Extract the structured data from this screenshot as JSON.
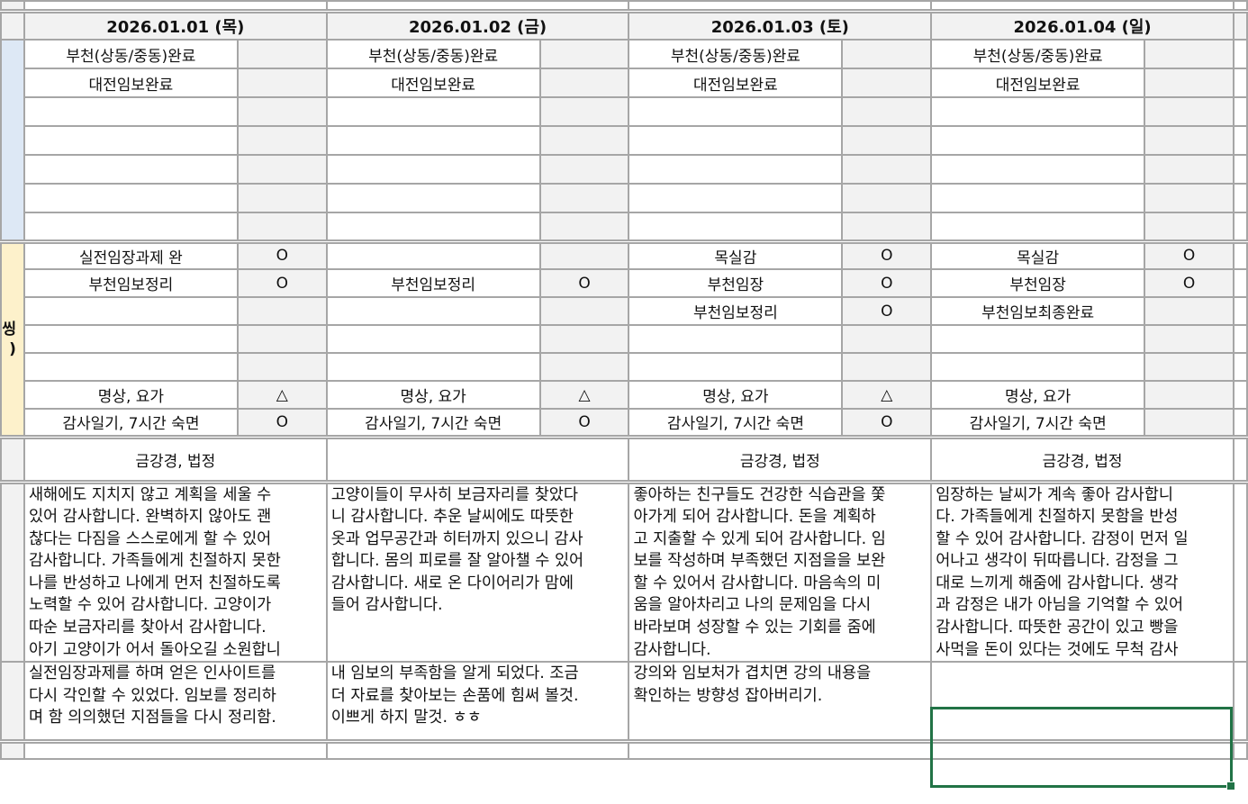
{
  "row_headers": {
    "study": "",
    "daily": [
      "씽",
      ")"
    ],
    "reading": "",
    "gratitude": "",
    "reflection": ""
  },
  "days": [
    {
      "date": "2026.01.01 (목)",
      "study": [
        {
          "label": "부천(상동/중동)완료",
          "mark": ""
        },
        {
          "label": "대전임보완료",
          "mark": ""
        },
        {
          "label": "",
          "mark": ""
        },
        {
          "label": "",
          "mark": ""
        },
        {
          "label": "",
          "mark": ""
        },
        {
          "label": "",
          "mark": ""
        },
        {
          "label": "",
          "mark": ""
        }
      ],
      "daily": [
        {
          "label": "실전임장과제 완",
          "mark": "O"
        },
        {
          "label": "부천임보정리",
          "mark": "O"
        },
        {
          "label": "",
          "mark": ""
        },
        {
          "label": "",
          "mark": ""
        },
        {
          "label": "",
          "mark": ""
        },
        {
          "label": "명상, 요가",
          "mark": "△"
        },
        {
          "label": "감사일기, 7시간 숙면",
          "mark": "O"
        }
      ],
      "reading": "금강경, 법정",
      "gratitude": [
        "새해에도 지치지 않고 계획을 세울 수",
        "있어 감사합니다. 완벽하지 않아도 괜",
        "찮다는 다짐을 스스로에게 할 수 있어",
        "감사합니다. 가족들에게 친절하지 못한",
        "나를 반성하고 나에게 먼저 친절하도록",
        "노력할 수 있어 감사합니다. 고양이가",
        "따순 보금자리를 찾아서 감사합니다.",
        "아기 고양이가 어서 돌아오길 소원합니"
      ],
      "reflection": [
        "실전임장과제를 하며 얻은 인사이트를",
        "다시 각인할 수 있었다. 임보를 정리하",
        "며 함 의의했던 지점들을 다시 정리함."
      ]
    },
    {
      "date": "2026.01.02 (금)",
      "study": [
        {
          "label": "부천(상동/중동)완료",
          "mark": ""
        },
        {
          "label": "대전임보완료",
          "mark": ""
        },
        {
          "label": "",
          "mark": ""
        },
        {
          "label": "",
          "mark": ""
        },
        {
          "label": "",
          "mark": ""
        },
        {
          "label": "",
          "mark": ""
        },
        {
          "label": "",
          "mark": ""
        }
      ],
      "daily": [
        {
          "label": "",
          "mark": ""
        },
        {
          "label": "부천임보정리",
          "mark": "O"
        },
        {
          "label": "",
          "mark": ""
        },
        {
          "label": "",
          "mark": ""
        },
        {
          "label": "",
          "mark": ""
        },
        {
          "label": "명상, 요가",
          "mark": "△"
        },
        {
          "label": "감사일기, 7시간 숙면",
          "mark": "O"
        }
      ],
      "reading": "",
      "gratitude": [
        "고양이들이 무사히 보금자리를 찾았다",
        "니 감사합니다. 추운 날씨에도 따뜻한",
        "옷과 업무공간과 히터까지 있으니 감사",
        "합니다. 몸의 피로를 잘 알아챌 수 있어",
        "감사합니다. 새로 온 다이어리가 맘에",
        "들어 감사합니다."
      ],
      "reflection": [
        "내 임보의 부족함을 알게 되었다. 조금",
        "더 자료를 찾아보는 손품에 힘써 볼것.",
        "이쁘게 하지 말것. ㅎㅎ"
      ]
    },
    {
      "date": "2026.01.03 (토)",
      "study": [
        {
          "label": "부천(상동/중동)완료",
          "mark": ""
        },
        {
          "label": "대전임보완료",
          "mark": ""
        },
        {
          "label": "",
          "mark": ""
        },
        {
          "label": "",
          "mark": ""
        },
        {
          "label": "",
          "mark": ""
        },
        {
          "label": "",
          "mark": ""
        },
        {
          "label": "",
          "mark": ""
        }
      ],
      "daily": [
        {
          "label": "목실감",
          "mark": "O"
        },
        {
          "label": "부천임장",
          "mark": "O"
        },
        {
          "label": "부천임보정리",
          "mark": "O"
        },
        {
          "label": "",
          "mark": ""
        },
        {
          "label": "",
          "mark": ""
        },
        {
          "label": "명상, 요가",
          "mark": "△"
        },
        {
          "label": "감사일기, 7시간 숙면",
          "mark": "O"
        }
      ],
      "reading": "금강경, 법정",
      "gratitude": [
        "좋아하는 친구들도 건강한 식습관을 쫓",
        "아가게 되어 감사합니다. 돈을 계획하",
        "고 지출할 수 있게 되어 감사합니다. 임",
        "보를 작성하며 부족했던 지점을을 보완",
        "할 수 있어서 감사합니다. 마음속의 미",
        "움을 알아차리고 나의 문제임을 다시",
        "바라보며 성장할 수 있는 기회를 줌에",
        "감사합니다."
      ],
      "reflection": [
        "강의와 임보처가 겹치면 강의 내용을",
        "확인하는 방향성 잡아버리기."
      ]
    },
    {
      "date": "2026.01.04 (일)",
      "study": [
        {
          "label": "부천(상동/중동)완료",
          "mark": ""
        },
        {
          "label": "대전임보완료",
          "mark": ""
        },
        {
          "label": "",
          "mark": ""
        },
        {
          "label": "",
          "mark": ""
        },
        {
          "label": "",
          "mark": ""
        },
        {
          "label": "",
          "mark": ""
        },
        {
          "label": "",
          "mark": ""
        }
      ],
      "daily": [
        {
          "label": "목실감",
          "mark": "O"
        },
        {
          "label": "부천임장",
          "mark": "O"
        },
        {
          "label": "부천임보최종완료",
          "mark": ""
        },
        {
          "label": "",
          "mark": ""
        },
        {
          "label": "",
          "mark": ""
        },
        {
          "label": "명상, 요가",
          "mark": ""
        },
        {
          "label": "감사일기, 7시간 숙면",
          "mark": ""
        }
      ],
      "reading": "금강경, 법정",
      "gratitude": [
        "임장하는 날씨가 계속 좋아 감사합니",
        "다. 가족들에게 친절하지 못함을 반성",
        "할 수 있어 감사합니다. 감정이 먼저 일",
        "어나고 생각이 뒤따릅니다. 감정을 그",
        "대로 느끼게 해줌에 감사합니다. 생각",
        "과 감정은 내가 아님을 기억할 수 있어",
        "감사합니다. 따뜻한 공간이 있고 빵을",
        "사먹을 돈이 있다는 것에도 무척 감사"
      ],
      "reflection": []
    }
  ],
  "selection_color": "#217346"
}
